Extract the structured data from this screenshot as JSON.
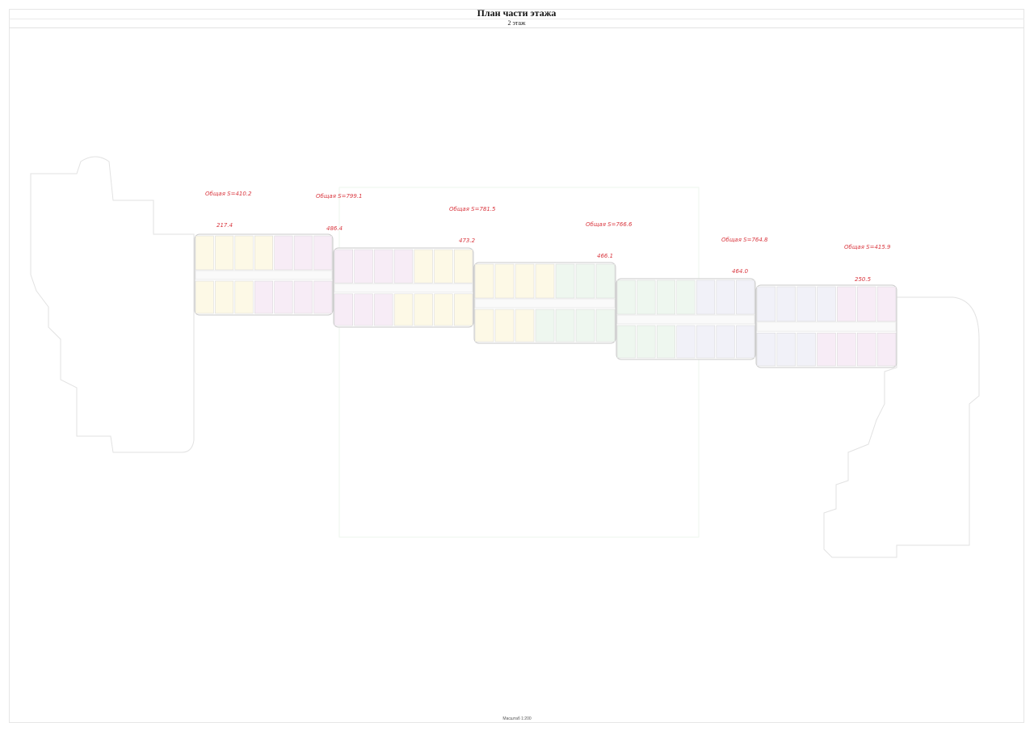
{
  "header": {
    "title": "План части этажа",
    "floor": "2 этаж"
  },
  "footer": {
    "scale": "Масштаб 1:200"
  },
  "colors": {
    "label": "#d9363e",
    "yellow": "#fdf9e6",
    "pink": "#f7ecf6",
    "green": "#eef7ef",
    "lavender": "#f1f1f8",
    "wall": "#c9c9c9"
  },
  "sections": [
    {
      "total_label": "Общая S=410.2",
      "part_label": "217.4",
      "fills": [
        "yellow",
        "pink"
      ]
    },
    {
      "total_label": "Общая S=799.1",
      "part_label": "486.4",
      "fills": [
        "pink",
        "yellow"
      ]
    },
    {
      "total_label": "Общая S=781.5",
      "part_label": "473.2",
      "fills": [
        "yellow",
        "green"
      ]
    },
    {
      "total_label": "Общая S=766.6",
      "part_label": "466.1",
      "fills": [
        "green",
        "lavender"
      ]
    },
    {
      "total_label": "Общая S=764.8",
      "part_label": "464.0",
      "fills": [
        "lavender",
        "pink"
      ]
    },
    {
      "total_label": "Общая S=415.9",
      "part_label": "250.5",
      "fills": [
        "lavender",
        "pink"
      ]
    }
  ]
}
